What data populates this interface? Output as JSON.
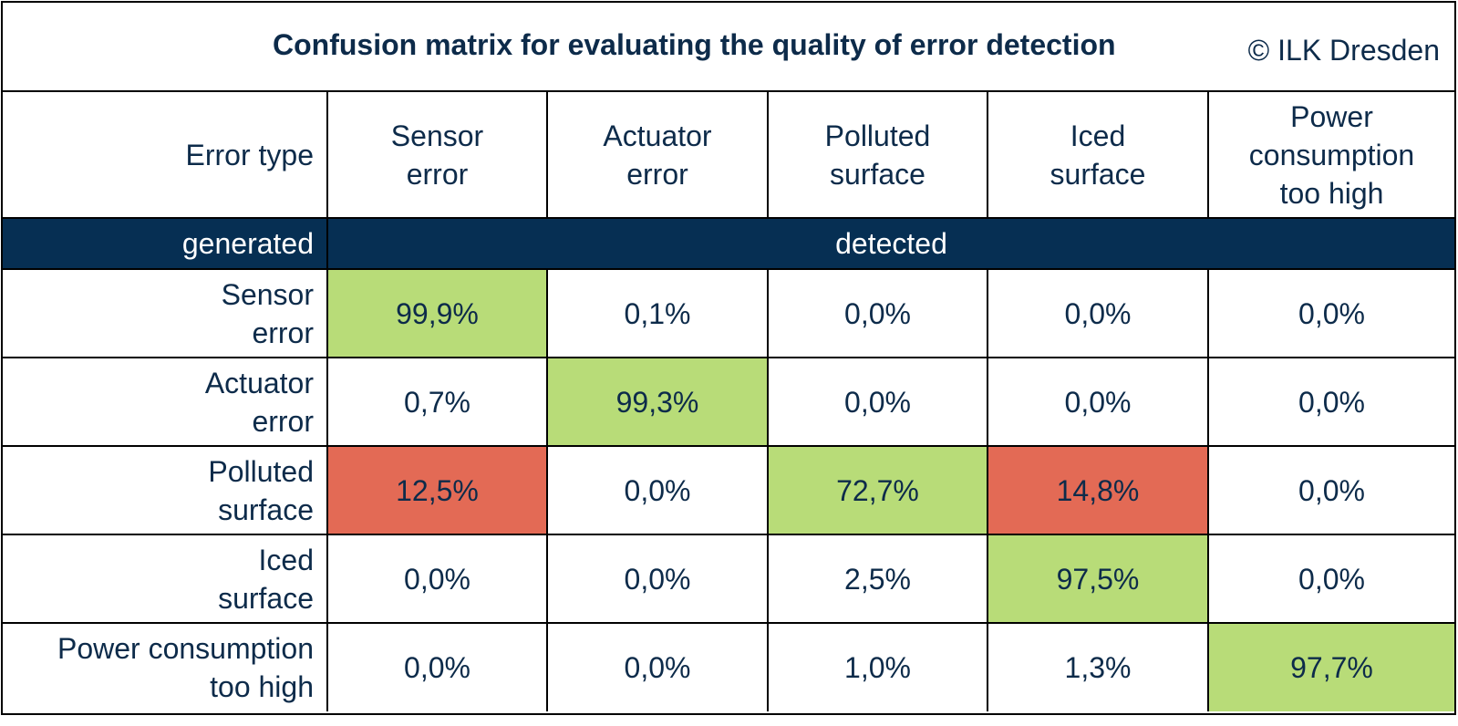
{
  "chart_data": {
    "type": "table",
    "title": "Confusion matrix for evaluating the quality of error detection",
    "copyright": "© ILK Dresden",
    "corner_label": "Error type",
    "row_axis_label": "generated",
    "col_axis_label": "detected",
    "columns": [
      {
        "lines": [
          "Sensor",
          "error"
        ]
      },
      {
        "lines": [
          "Actuator",
          "error"
        ]
      },
      {
        "lines": [
          "Polluted",
          "surface"
        ]
      },
      {
        "lines": [
          "Iced",
          "surface"
        ]
      },
      {
        "lines": [
          "Power",
          "consumption",
          "too high"
        ]
      }
    ],
    "rows": [
      {
        "lines": [
          "Sensor",
          "error"
        ],
        "values": [
          "99,9%",
          "0,1%",
          "0,0%",
          "0,0%",
          "0,0%"
        ],
        "status": [
          "good",
          "",
          "",
          "",
          ""
        ]
      },
      {
        "lines": [
          "Actuator",
          "error"
        ],
        "values": [
          "0,7%",
          "99,3%",
          "0,0%",
          "0,0%",
          "0,0%"
        ],
        "status": [
          "",
          "good",
          "",
          "",
          ""
        ]
      },
      {
        "lines": [
          "Polluted",
          "surface"
        ],
        "values": [
          "12,5%",
          "0,0%",
          "72,7%",
          "14,8%",
          "0,0%"
        ],
        "status": [
          "bad",
          "",
          "good",
          "bad",
          ""
        ]
      },
      {
        "lines": [
          "Iced",
          "surface"
        ],
        "values": [
          "0,0%",
          "0,0%",
          "2,5%",
          "97,5%",
          "0,0%"
        ],
        "status": [
          "",
          "",
          "",
          "good",
          ""
        ]
      },
      {
        "lines": [
          "Power consumption",
          "too high"
        ],
        "values": [
          "0,0%",
          "0,0%",
          "1,0%",
          "1,3%",
          "97,7%"
        ],
        "status": [
          "",
          "",
          "",
          "",
          "good"
        ]
      }
    ],
    "colors": {
      "good": "#b8dc78",
      "bad": "#e36a55",
      "band": "#062f53",
      "text": "#0d2b4a"
    }
  }
}
